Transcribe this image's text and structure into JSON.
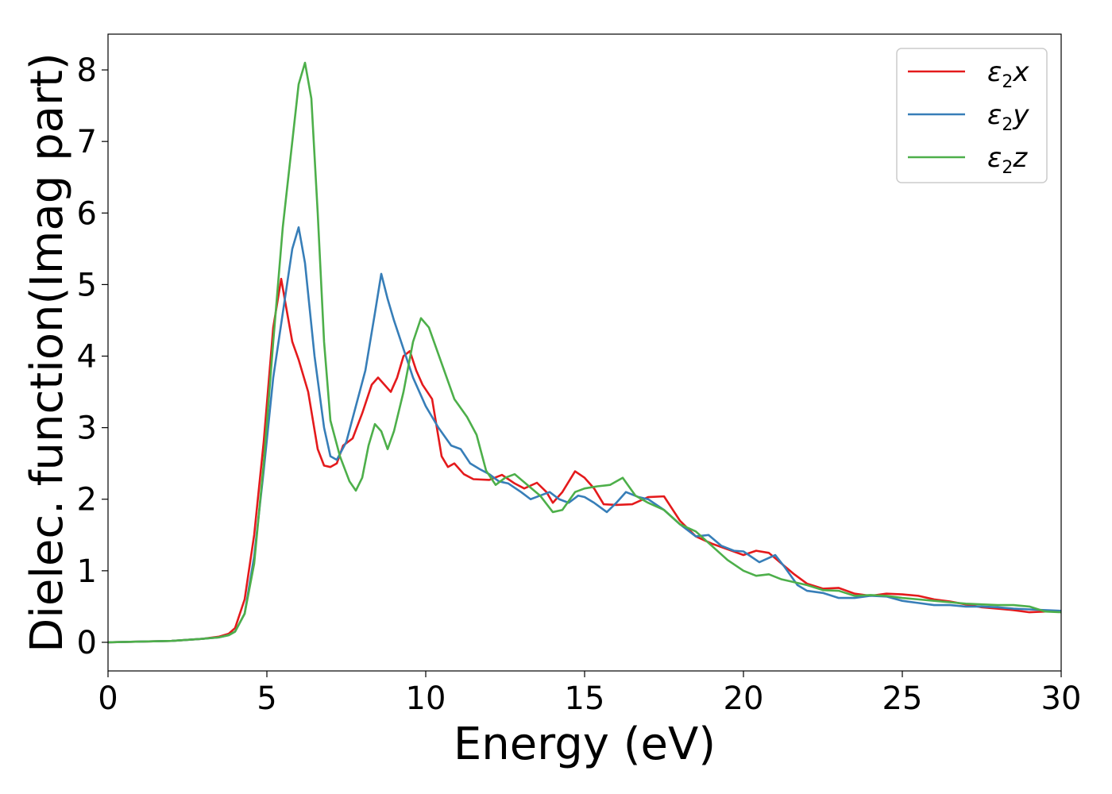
{
  "chart_data": {
    "type": "line",
    "xlabel": "Energy (eV)",
    "ylabel": "Dielec. function(Imag part)",
    "xlim": [
      0,
      30
    ],
    "ylim": [
      -0.4,
      8.5
    ],
    "xticks": [
      0,
      5,
      10,
      15,
      20,
      25,
      30
    ],
    "yticks": [
      0,
      1,
      2,
      3,
      4,
      5,
      6,
      7,
      8
    ],
    "grid": false,
    "legend_position": "top-right",
    "series": [
      {
        "name": "ε2x",
        "legend": {
          "base": "ε",
          "sub": "2",
          "var": "x"
        },
        "color": "#e41a1c",
        "points": [
          [
            0,
            0
          ],
          [
            1,
            0.01
          ],
          [
            2,
            0.02
          ],
          [
            3,
            0.05
          ],
          [
            3.5,
            0.08
          ],
          [
            3.8,
            0.12
          ],
          [
            4.0,
            0.2
          ],
          [
            4.3,
            0.6
          ],
          [
            4.6,
            1.5
          ],
          [
            4.9,
            2.8
          ],
          [
            5.2,
            4.4
          ],
          [
            5.45,
            5.08
          ],
          [
            5.6,
            4.7
          ],
          [
            5.8,
            4.2
          ],
          [
            6.0,
            3.95
          ],
          [
            6.3,
            3.5
          ],
          [
            6.6,
            2.7
          ],
          [
            6.8,
            2.47
          ],
          [
            7.0,
            2.45
          ],
          [
            7.2,
            2.5
          ],
          [
            7.4,
            2.75
          ],
          [
            7.7,
            2.85
          ],
          [
            8.0,
            3.2
          ],
          [
            8.3,
            3.6
          ],
          [
            8.5,
            3.7
          ],
          [
            8.7,
            3.6
          ],
          [
            8.9,
            3.5
          ],
          [
            9.1,
            3.7
          ],
          [
            9.3,
            4.0
          ],
          [
            9.5,
            4.07
          ],
          [
            9.7,
            3.8
          ],
          [
            9.9,
            3.6
          ],
          [
            10.2,
            3.4
          ],
          [
            10.5,
            2.6
          ],
          [
            10.7,
            2.45
          ],
          [
            10.9,
            2.5
          ],
          [
            11.2,
            2.35
          ],
          [
            11.5,
            2.28
          ],
          [
            12.0,
            2.27
          ],
          [
            12.4,
            2.34
          ],
          [
            12.8,
            2.22
          ],
          [
            13.1,
            2.15
          ],
          [
            13.5,
            2.23
          ],
          [
            13.8,
            2.1
          ],
          [
            14.0,
            1.95
          ],
          [
            14.3,
            2.1
          ],
          [
            14.7,
            2.39
          ],
          [
            15.0,
            2.3
          ],
          [
            15.3,
            2.15
          ],
          [
            15.6,
            1.93
          ],
          [
            16.0,
            1.92
          ],
          [
            16.5,
            1.93
          ],
          [
            17.0,
            2.03
          ],
          [
            17.5,
            2.04
          ],
          [
            18.0,
            1.7
          ],
          [
            18.5,
            1.48
          ],
          [
            19.0,
            1.38
          ],
          [
            19.5,
            1.3
          ],
          [
            20.0,
            1.22
          ],
          [
            20.4,
            1.28
          ],
          [
            20.8,
            1.25
          ],
          [
            21.2,
            1.1
          ],
          [
            21.6,
            0.95
          ],
          [
            22.0,
            0.82
          ],
          [
            22.5,
            0.75
          ],
          [
            23.0,
            0.76
          ],
          [
            23.5,
            0.68
          ],
          [
            24.0,
            0.65
          ],
          [
            24.5,
            0.68
          ],
          [
            25.0,
            0.67
          ],
          [
            25.5,
            0.65
          ],
          [
            26.0,
            0.6
          ],
          [
            26.5,
            0.57
          ],
          [
            27.0,
            0.53
          ],
          [
            27.5,
            0.49
          ],
          [
            28.0,
            0.47
          ],
          [
            28.5,
            0.45
          ],
          [
            29.0,
            0.42
          ],
          [
            29.5,
            0.43
          ],
          [
            30.0,
            0.43
          ]
        ]
      },
      {
        "name": "ε2y",
        "legend": {
          "base": "ε",
          "sub": "2",
          "var": "y"
        },
        "color": "#377eb8",
        "points": [
          [
            0,
            0
          ],
          [
            1,
            0.01
          ],
          [
            2,
            0.02
          ],
          [
            3,
            0.05
          ],
          [
            3.5,
            0.07
          ],
          [
            3.8,
            0.1
          ],
          [
            4.0,
            0.15
          ],
          [
            4.3,
            0.4
          ],
          [
            4.6,
            1.2
          ],
          [
            4.9,
            2.4
          ],
          [
            5.2,
            3.7
          ],
          [
            5.5,
            4.6
          ],
          [
            5.8,
            5.5
          ],
          [
            6.0,
            5.8
          ],
          [
            6.2,
            5.3
          ],
          [
            6.5,
            4.0
          ],
          [
            6.8,
            3.0
          ],
          [
            7.0,
            2.6
          ],
          [
            7.2,
            2.55
          ],
          [
            7.5,
            2.8
          ],
          [
            7.8,
            3.3
          ],
          [
            8.1,
            3.8
          ],
          [
            8.4,
            4.6
          ],
          [
            8.6,
            5.15
          ],
          [
            8.8,
            4.8
          ],
          [
            9.0,
            4.5
          ],
          [
            9.3,
            4.1
          ],
          [
            9.6,
            3.7
          ],
          [
            10.0,
            3.3
          ],
          [
            10.4,
            3.0
          ],
          [
            10.8,
            2.75
          ],
          [
            11.1,
            2.7
          ],
          [
            11.4,
            2.5
          ],
          [
            11.7,
            2.42
          ],
          [
            12.0,
            2.35
          ],
          [
            12.3,
            2.25
          ],
          [
            12.6,
            2.22
          ],
          [
            13.0,
            2.1
          ],
          [
            13.3,
            2.0
          ],
          [
            13.6,
            2.05
          ],
          [
            13.9,
            2.1
          ],
          [
            14.2,
            2.0
          ],
          [
            14.5,
            1.95
          ],
          [
            14.8,
            2.05
          ],
          [
            15.0,
            2.03
          ],
          [
            15.3,
            1.95
          ],
          [
            15.7,
            1.82
          ],
          [
            16.0,
            1.95
          ],
          [
            16.3,
            2.1
          ],
          [
            16.7,
            2.03
          ],
          [
            17.0,
            2.0
          ],
          [
            17.5,
            1.85
          ],
          [
            18.0,
            1.65
          ],
          [
            18.5,
            1.48
          ],
          [
            18.9,
            1.5
          ],
          [
            19.3,
            1.35
          ],
          [
            19.7,
            1.28
          ],
          [
            20.0,
            1.27
          ],
          [
            20.5,
            1.12
          ],
          [
            21.0,
            1.22
          ],
          [
            21.3,
            1.05
          ],
          [
            21.7,
            0.8
          ],
          [
            22.0,
            0.72
          ],
          [
            22.5,
            0.69
          ],
          [
            23.0,
            0.62
          ],
          [
            23.5,
            0.62
          ],
          [
            24.0,
            0.65
          ],
          [
            24.5,
            0.64
          ],
          [
            25.0,
            0.58
          ],
          [
            25.5,
            0.55
          ],
          [
            26.0,
            0.52
          ],
          [
            26.5,
            0.52
          ],
          [
            27.0,
            0.5
          ],
          [
            27.5,
            0.5
          ],
          [
            28.0,
            0.49
          ],
          [
            28.5,
            0.47
          ],
          [
            29.0,
            0.46
          ],
          [
            29.5,
            0.45
          ],
          [
            30.0,
            0.44
          ]
        ]
      },
      {
        "name": "ε2z",
        "legend": {
          "base": "ε",
          "sub": "2",
          "var": "z"
        },
        "color": "#4daf4a",
        "points": [
          [
            0,
            0
          ],
          [
            1,
            0.01
          ],
          [
            2,
            0.02
          ],
          [
            3,
            0.05
          ],
          [
            3.5,
            0.07
          ],
          [
            3.8,
            0.1
          ],
          [
            4.0,
            0.15
          ],
          [
            4.3,
            0.4
          ],
          [
            4.6,
            1.1
          ],
          [
            4.9,
            2.5
          ],
          [
            5.2,
            4.2
          ],
          [
            5.5,
            5.8
          ],
          [
            5.8,
            7.0
          ],
          [
            6.0,
            7.8
          ],
          [
            6.2,
            8.1
          ],
          [
            6.4,
            7.6
          ],
          [
            6.6,
            6.0
          ],
          [
            6.8,
            4.2
          ],
          [
            7.0,
            3.1
          ],
          [
            7.3,
            2.6
          ],
          [
            7.6,
            2.25
          ],
          [
            7.8,
            2.12
          ],
          [
            8.0,
            2.3
          ],
          [
            8.2,
            2.75
          ],
          [
            8.4,
            3.05
          ],
          [
            8.6,
            2.95
          ],
          [
            8.8,
            2.7
          ],
          [
            9.0,
            2.95
          ],
          [
            9.3,
            3.5
          ],
          [
            9.6,
            4.2
          ],
          [
            9.85,
            4.53
          ],
          [
            10.1,
            4.4
          ],
          [
            10.5,
            3.9
          ],
          [
            10.9,
            3.4
          ],
          [
            11.3,
            3.15
          ],
          [
            11.6,
            2.9
          ],
          [
            11.9,
            2.4
          ],
          [
            12.2,
            2.2
          ],
          [
            12.5,
            2.3
          ],
          [
            12.8,
            2.35
          ],
          [
            13.2,
            2.2
          ],
          [
            13.6,
            2.05
          ],
          [
            14.0,
            1.82
          ],
          [
            14.3,
            1.85
          ],
          [
            14.7,
            2.1
          ],
          [
            15.0,
            2.15
          ],
          [
            15.4,
            2.18
          ],
          [
            15.8,
            2.2
          ],
          [
            16.2,
            2.3
          ],
          [
            16.6,
            2.05
          ],
          [
            17.0,
            1.95
          ],
          [
            17.5,
            1.85
          ],
          [
            18.0,
            1.65
          ],
          [
            18.5,
            1.55
          ],
          [
            19.0,
            1.35
          ],
          [
            19.5,
            1.15
          ],
          [
            20.0,
            1.0
          ],
          [
            20.4,
            0.93
          ],
          [
            20.8,
            0.95
          ],
          [
            21.2,
            0.88
          ],
          [
            21.6,
            0.84
          ],
          [
            22.0,
            0.8
          ],
          [
            22.5,
            0.73
          ],
          [
            23.0,
            0.72
          ],
          [
            23.5,
            0.65
          ],
          [
            24.0,
            0.66
          ],
          [
            24.5,
            0.65
          ],
          [
            25.0,
            0.62
          ],
          [
            25.5,
            0.6
          ],
          [
            26.0,
            0.58
          ],
          [
            26.5,
            0.56
          ],
          [
            27.0,
            0.54
          ],
          [
            27.5,
            0.53
          ],
          [
            28.0,
            0.52
          ],
          [
            28.5,
            0.52
          ],
          [
            29.0,
            0.5
          ],
          [
            29.5,
            0.43
          ],
          [
            30.0,
            0.42
          ]
        ]
      }
    ]
  }
}
